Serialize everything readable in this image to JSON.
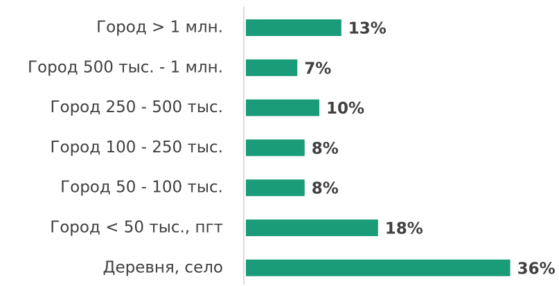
{
  "chart_data": {
    "type": "bar",
    "orientation": "horizontal",
    "categories": [
      "Город > 1 млн.",
      "Город 500 тыс. - 1 млн.",
      "Город 250 - 500 тыс.",
      "Город 100 - 250 тыс.",
      "Город 50 - 100 тыс.",
      "Город < 50 тыс., пгт",
      "Деревня, село"
    ],
    "values": [
      13,
      7,
      10,
      8,
      8,
      18,
      36
    ],
    "value_labels": [
      "13%",
      "7%",
      "10%",
      "8%",
      "8%",
      "18%",
      "36%"
    ],
    "color": "#1b9c78"
  }
}
